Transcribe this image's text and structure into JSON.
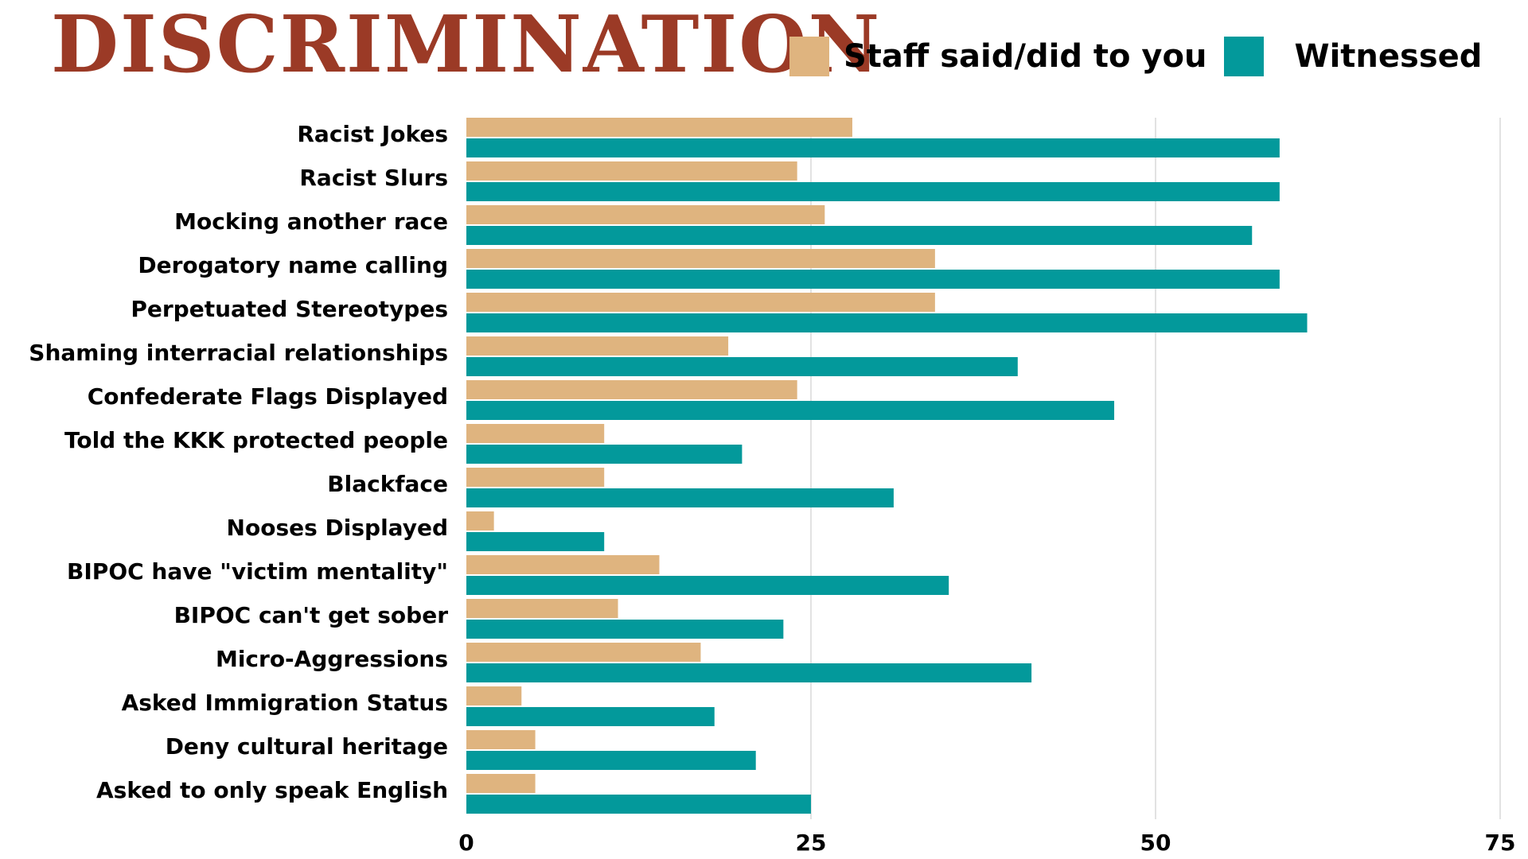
{
  "title": "DISCRIMINATION",
  "legend": {
    "staff_label": "Staff said/did to you",
    "witnessed_label": "Witnessed"
  },
  "colors": {
    "title": "#9b3a26",
    "staff": "#dfb47f",
    "witnessed": "#03999b",
    "grid": "#d9d9d9"
  },
  "chart_data": {
    "type": "bar",
    "orientation": "horizontal",
    "categories": [
      "Racist Jokes",
      "Racist Slurs",
      "Mocking another race",
      "Derogatory name calling",
      "Perpetuated Stereotypes",
      "Shaming interracial relationships",
      "Confederate Flags Displayed",
      "Told the KKK protected people",
      "Blackface",
      "Nooses Displayed",
      "BIPOC have \"victim mentality\"",
      "BIPOC can't get sober",
      "Micro-Aggressions",
      "Asked Immigration Status",
      "Deny cultural heritage",
      "Asked to only speak English"
    ],
    "series": [
      {
        "name": "Staff said/did to you",
        "values": [
          28,
          24,
          26,
          34,
          34,
          19,
          24,
          10,
          10,
          2,
          14,
          11,
          17,
          4,
          5,
          5
        ]
      },
      {
        "name": "Witnessed",
        "values": [
          59,
          59,
          57,
          59,
          61,
          40,
          47,
          20,
          31,
          10,
          35,
          23,
          41,
          18,
          21,
          25
        ]
      }
    ],
    "xlim": [
      0,
      75
    ],
    "xticks": [
      "0",
      "25",
      "50",
      "75"
    ],
    "grid": "vertical",
    "legend_position": "top"
  }
}
